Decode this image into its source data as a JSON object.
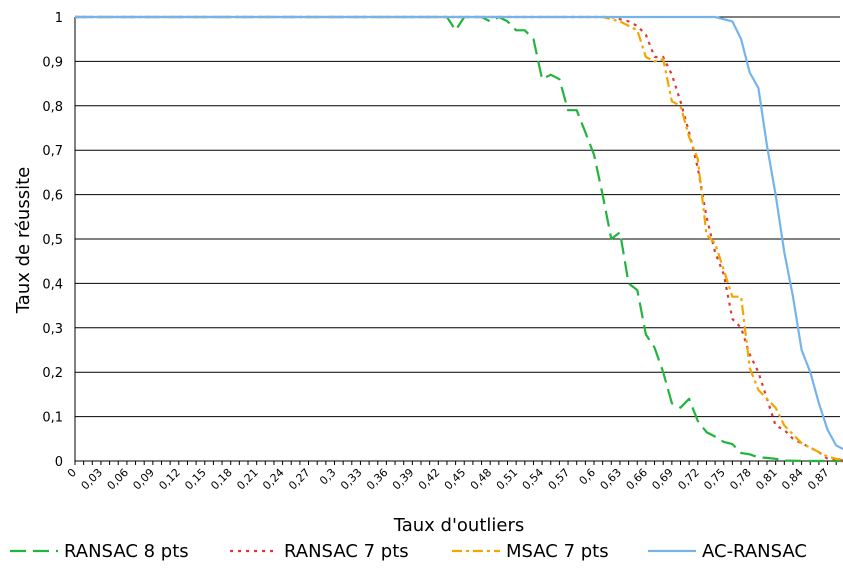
{
  "chart_data": {
    "type": "line",
    "title": "",
    "xlabel": "Taux d'outliers",
    "ylabel": "Taux de réussite",
    "ylim": [
      0,
      1
    ],
    "xlim": [
      0,
      0.9
    ],
    "x_ticks": [
      "0",
      "0,03",
      "0,06",
      "0,09",
      "0,12",
      "0,15",
      "0,18",
      "0,21",
      "0,24",
      "0,27",
      "0,3",
      "0,33",
      "0,36",
      "0,39",
      "0,42",
      "0,45",
      "0,48",
      "0,51",
      "0,54",
      "0,57",
      "0,6",
      "0,63",
      "0,66",
      "0,69",
      "0,72",
      "0,75",
      "0,78",
      "0,81",
      "0,84",
      "0,87"
    ],
    "y_ticks": [
      "0",
      "0,1",
      "0,2",
      "0,3",
      "0,4",
      "0,5",
      "0,6",
      "0,7",
      "0,8",
      "0,9",
      "1"
    ],
    "grid": "horizontal",
    "legend_position": "bottom",
    "series": [
      {
        "name": "RANSAC 8 pts",
        "color": "#22b43c",
        "dash": "long-dash",
        "points": [
          [
            0,
            1
          ],
          [
            0.43,
            1
          ],
          [
            0.44,
            0.97
          ],
          [
            0.45,
            1
          ],
          [
            0.47,
            1
          ],
          [
            0.48,
            0.99
          ],
          [
            0.49,
            1
          ],
          [
            0.5,
            0.99
          ],
          [
            0.51,
            0.97
          ],
          [
            0.52,
            0.97
          ],
          [
            0.53,
            0.95
          ],
          [
            0.54,
            0.86
          ],
          [
            0.55,
            0.87
          ],
          [
            0.56,
            0.86
          ],
          [
            0.57,
            0.79
          ],
          [
            0.58,
            0.79
          ],
          [
            0.59,
            0.74
          ],
          [
            0.6,
            0.69
          ],
          [
            0.61,
            0.6
          ],
          [
            0.62,
            0.5
          ],
          [
            0.63,
            0.515
          ],
          [
            0.64,
            0.4
          ],
          [
            0.65,
            0.385
          ],
          [
            0.66,
            0.285
          ],
          [
            0.67,
            0.255
          ],
          [
            0.68,
            0.2
          ],
          [
            0.69,
            0.13
          ],
          [
            0.7,
            0.12
          ],
          [
            0.71,
            0.14
          ],
          [
            0.72,
            0.09
          ],
          [
            0.73,
            0.065
          ],
          [
            0.74,
            0.055
          ],
          [
            0.75,
            0.043
          ],
          [
            0.76,
            0.038
          ],
          [
            0.77,
            0.018
          ],
          [
            0.78,
            0.015
          ],
          [
            0.79,
            0.008
          ],
          [
            0.8,
            0.007
          ],
          [
            0.81,
            0.005
          ],
          [
            0.82,
            0.001
          ],
          [
            0.85,
            0
          ],
          [
            0.9,
            0
          ]
        ]
      },
      {
        "name": "RANSAC 7 pts",
        "color": "#d93a3a",
        "dash": "dot",
        "points": [
          [
            0,
            1
          ],
          [
            0.62,
            1
          ],
          [
            0.64,
            0.99
          ],
          [
            0.65,
            0.98
          ],
          [
            0.66,
            0.96
          ],
          [
            0.67,
            0.91
          ],
          [
            0.68,
            0.91
          ],
          [
            0.69,
            0.87
          ],
          [
            0.7,
            0.81
          ],
          [
            0.71,
            0.74
          ],
          [
            0.72,
            0.66
          ],
          [
            0.73,
            0.55
          ],
          [
            0.74,
            0.47
          ],
          [
            0.75,
            0.42
          ],
          [
            0.76,
            0.32
          ],
          [
            0.77,
            0.3
          ],
          [
            0.78,
            0.24
          ],
          [
            0.79,
            0.2
          ],
          [
            0.8,
            0.14
          ],
          [
            0.81,
            0.08
          ],
          [
            0.82,
            0.07
          ],
          [
            0.83,
            0.05
          ],
          [
            0.84,
            0.04
          ],
          [
            0.85,
            0.03
          ],
          [
            0.86,
            0.02
          ],
          [
            0.87,
            0.005
          ],
          [
            0.88,
            0.002
          ],
          [
            0.9,
            0
          ]
        ]
      },
      {
        "name": "MSAC 7 pts",
        "color": "#f5a500",
        "dash": "dash-dot",
        "points": [
          [
            0,
            1
          ],
          [
            0.61,
            1
          ],
          [
            0.62,
            0.995
          ],
          [
            0.63,
            0.99
          ],
          [
            0.64,
            0.98
          ],
          [
            0.65,
            0.97
          ],
          [
            0.66,
            0.91
          ],
          [
            0.67,
            0.9
          ],
          [
            0.68,
            0.905
          ],
          [
            0.69,
            0.81
          ],
          [
            0.7,
            0.8
          ],
          [
            0.71,
            0.73
          ],
          [
            0.72,
            0.68
          ],
          [
            0.73,
            0.51
          ],
          [
            0.74,
            0.49
          ],
          [
            0.75,
            0.43
          ],
          [
            0.76,
            0.37
          ],
          [
            0.77,
            0.37
          ],
          [
            0.78,
            0.21
          ],
          [
            0.79,
            0.16
          ],
          [
            0.8,
            0.14
          ],
          [
            0.81,
            0.12
          ],
          [
            0.82,
            0.08
          ],
          [
            0.83,
            0.06
          ],
          [
            0.84,
            0.04
          ],
          [
            0.85,
            0.03
          ],
          [
            0.86,
            0.02
          ],
          [
            0.87,
            0.01
          ],
          [
            0.88,
            0.005
          ],
          [
            0.9,
            0
          ]
        ]
      },
      {
        "name": "AC-RANSAC",
        "color": "#74b4ec",
        "dash": "solid",
        "points": [
          [
            0,
            1
          ],
          [
            0.74,
            1
          ],
          [
            0.76,
            0.99
          ],
          [
            0.77,
            0.95
          ],
          [
            0.78,
            0.875
          ],
          [
            0.79,
            0.84
          ],
          [
            0.8,
            0.71
          ],
          [
            0.81,
            0.6
          ],
          [
            0.82,
            0.47
          ],
          [
            0.83,
            0.37
          ],
          [
            0.84,
            0.25
          ],
          [
            0.85,
            0.2
          ],
          [
            0.86,
            0.13
          ],
          [
            0.87,
            0.07
          ],
          [
            0.88,
            0.035
          ],
          [
            0.89,
            0.025
          ],
          [
            0.9,
            0.012
          ]
        ]
      }
    ]
  }
}
